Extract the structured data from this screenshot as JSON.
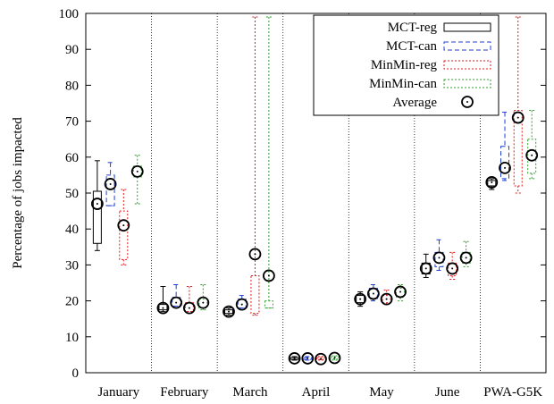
{
  "chart_data": {
    "type": "boxplot",
    "ylabel": "Percentage of jobs impacted",
    "ylim": [
      0,
      100
    ],
    "yticks": [
      0,
      10,
      20,
      30,
      40,
      50,
      60,
      70,
      80,
      90,
      100
    ],
    "categories": [
      "January",
      "February",
      "March",
      "April",
      "May",
      "June",
      "PWA-G5K"
    ],
    "legend_position": "top-right",
    "average_label": "Average",
    "series": [
      {
        "name": "MCT-reg",
        "color": "#000000",
        "dash": "solid",
        "boxes": [
          {
            "min": 34,
            "q1": 36,
            "q3": 50.5,
            "max": 59,
            "avg": 47
          },
          {
            "min": 17,
            "q1": 17.5,
            "q3": 19,
            "max": 24,
            "avg": 18
          },
          {
            "min": 16,
            "q1": 16.5,
            "q3": 17.5,
            "max": 18,
            "avg": 17
          },
          {
            "min": 3.5,
            "q1": 3.7,
            "q3": 4.2,
            "max": 4.5,
            "avg": 4
          },
          {
            "min": 18.5,
            "q1": 19.5,
            "q3": 21.5,
            "max": 22.5,
            "avg": 20.5
          },
          {
            "min": 26.5,
            "q1": 27.5,
            "q3": 30.5,
            "max": 33,
            "avg": 29
          },
          {
            "min": 51,
            "q1": 52,
            "q3": 53.5,
            "max": 54,
            "avg": 53
          }
        ]
      },
      {
        "name": "MCT-can",
        "color": "#1f3fd4",
        "dash": "dashed",
        "boxes": [
          {
            "min": 46.5,
            "q1": 46.5,
            "q3": 55,
            "max": 58.5,
            "avg": 52.5
          },
          {
            "min": 18.5,
            "q1": 18.5,
            "q3": 21,
            "max": 24.5,
            "avg": 19.5
          },
          {
            "min": 18,
            "q1": 18,
            "q3": 20.5,
            "max": 21.5,
            "avg": 19
          },
          {
            "min": 3.5,
            "q1": 3.7,
            "q3": 4.2,
            "max": 4.5,
            "avg": 4
          },
          {
            "min": 20,
            "q1": 20.5,
            "q3": 23.5,
            "max": 24.5,
            "avg": 22
          },
          {
            "min": 28.5,
            "q1": 29.5,
            "q3": 33.5,
            "max": 37,
            "avg": 32
          },
          {
            "min": 53.5,
            "q1": 54,
            "q3": 63,
            "max": 72.5,
            "avg": 57
          }
        ]
      },
      {
        "name": "MinMin-reg",
        "color": "#e41a1c",
        "dash": "dotted",
        "boxes": [
          {
            "min": 30,
            "q1": 31.5,
            "q3": 45,
            "max": 51,
            "avg": 41
          },
          {
            "min": 17,
            "q1": 17,
            "q3": 19.5,
            "max": 24,
            "avg": 18
          },
          {
            "min": 16,
            "q1": 16.5,
            "q3": 27,
            "max": 99,
            "avg": 33
          },
          {
            "min": 3.5,
            "q1": 3.7,
            "q3": 4.2,
            "max": 4.5,
            "avg": 3.8
          },
          {
            "min": 19,
            "q1": 19.5,
            "q3": 21.5,
            "max": 23,
            "avg": 20.5
          },
          {
            "min": 26,
            "q1": 27,
            "q3": 30.5,
            "max": 33.5,
            "avg": 29
          },
          {
            "min": 50,
            "q1": 52,
            "q3": 73,
            "max": 99,
            "avg": 71
          }
        ]
      },
      {
        "name": "MinMin-can",
        "color": "#2ea02c",
        "dash": "dotted",
        "boxes": [
          {
            "min": 47,
            "q1": 54.5,
            "q3": 57.5,
            "max": 60.5,
            "avg": 56
          },
          {
            "min": 17.5,
            "q1": 18,
            "q3": 20.5,
            "max": 24.5,
            "avg": 19.5
          },
          {
            "min": 18,
            "q1": 18,
            "q3": 20,
            "max": 99,
            "avg": 27
          },
          {
            "min": 3.5,
            "q1": 3.8,
            "q3": 4.4,
            "max": 4.7,
            "avg": 4.1
          },
          {
            "min": 20,
            "q1": 21,
            "q3": 23.5,
            "max": 24.5,
            "avg": 22.5
          },
          {
            "min": 29.5,
            "q1": 30.5,
            "q3": 33.5,
            "max": 36.5,
            "avg": 32
          },
          {
            "min": 54,
            "q1": 55.5,
            "q3": 65,
            "max": 73,
            "avg": 60.5
          }
        ]
      }
    ]
  }
}
